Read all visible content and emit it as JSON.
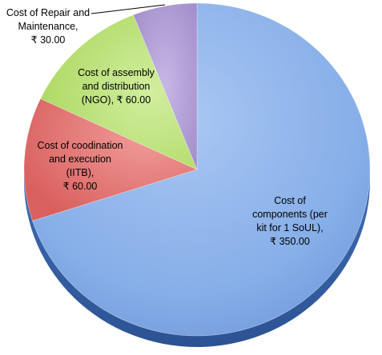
{
  "chart_data": {
    "type": "pie",
    "title": "",
    "categories": [
      "Cost of components (per kit for 1 SoUL)",
      "Cost of coodination and execution (IITB)",
      "Cost of assembly and distribution (NGO)",
      "Cost of Repair and Maintenance"
    ],
    "values": [
      350,
      60,
      60,
      30
    ],
    "colors": [
      "#86aee8",
      "#df6b69",
      "#b6df6f",
      "#a893cf"
    ],
    "slices": [
      {
        "label_lines": [
          "Cost of",
          "components (per",
          "kit for 1 SoUL),",
          "₹ 350.00"
        ],
        "value": 350,
        "color": "#86aee8"
      },
      {
        "label_lines": [
          "Cost of coodination",
          "and execution",
          "(IITB),",
          "₹ 60.00"
        ],
        "value": 60,
        "color": "#df6b69"
      },
      {
        "label_lines": [
          "Cost of assembly",
          "and distribution",
          "(NGO), ₹ 60.00"
        ],
        "value": 60,
        "color": "#b6df6f"
      },
      {
        "label_lines": [
          "Cost of Repair and",
          "Maintenance,",
          "₹ 30.00"
        ],
        "value": 30,
        "color": "#a893cf"
      }
    ],
    "legend": "none",
    "start_angle": "12 o'clock",
    "direction": "clockwise"
  }
}
